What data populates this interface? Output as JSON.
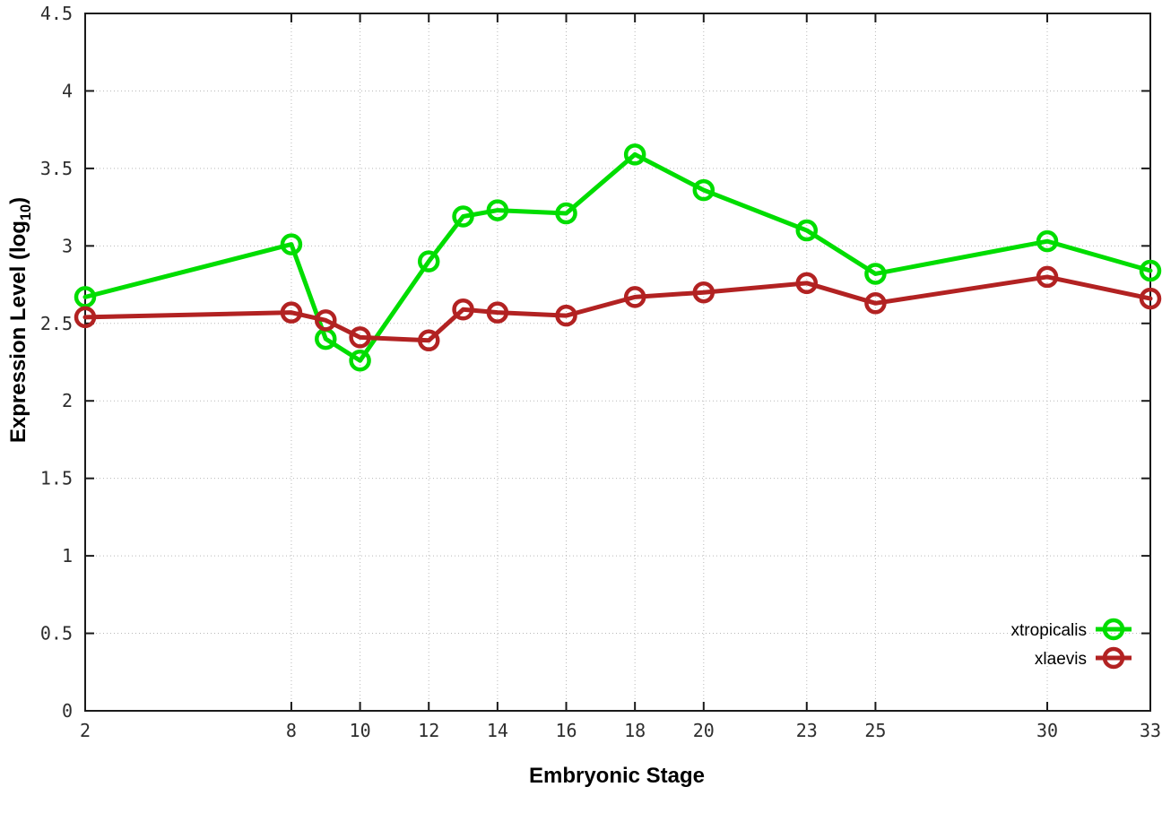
{
  "chart_data": {
    "type": "line",
    "title": "",
    "xlabel": "Embryonic Stage",
    "ylabel_prefix": "Expression Level (log",
    "ylabel_sub": "10",
    "ylabel_suffix": ")",
    "xlim": [
      2,
      33
    ],
    "ylim": [
      0,
      4.5
    ],
    "grid": true,
    "legend_position": "bottom-right",
    "x_ticks": [
      2,
      8,
      10,
      12,
      14,
      16,
      18,
      20,
      23,
      25,
      30,
      33
    ],
    "y_tick_values": [
      0,
      0.5,
      1,
      1.5,
      2,
      2.5,
      3,
      3.5,
      4,
      4.5
    ],
    "y_tick_labels": [
      "0",
      "0.5",
      "1",
      "1.5",
      "2",
      "2.5",
      "3",
      "3.5",
      "4",
      "4.5"
    ],
    "x": [
      2,
      8,
      9,
      10,
      12,
      13,
      14,
      16,
      18,
      20,
      23,
      25,
      30,
      33
    ],
    "series": [
      {
        "name": "xtropicalis",
        "color": "#00dd00",
        "marker": "open-circle",
        "values": [
          2.67,
          3.01,
          2.4,
          2.26,
          2.9,
          3.19,
          3.23,
          3.21,
          3.59,
          3.36,
          3.1,
          2.82,
          3.03,
          2.84
        ]
      },
      {
        "name": "xlaevis",
        "color": "#b22222",
        "marker": "open-circle",
        "values": [
          2.54,
          2.57,
          2.52,
          2.41,
          2.39,
          2.59,
          2.57,
          2.55,
          2.67,
          2.7,
          2.76,
          2.63,
          2.8,
          2.66
        ]
      }
    ],
    "colors": {
      "background": "#ffffff",
      "border": "#1a1a1a",
      "gridline": "#b8b8b8"
    }
  }
}
